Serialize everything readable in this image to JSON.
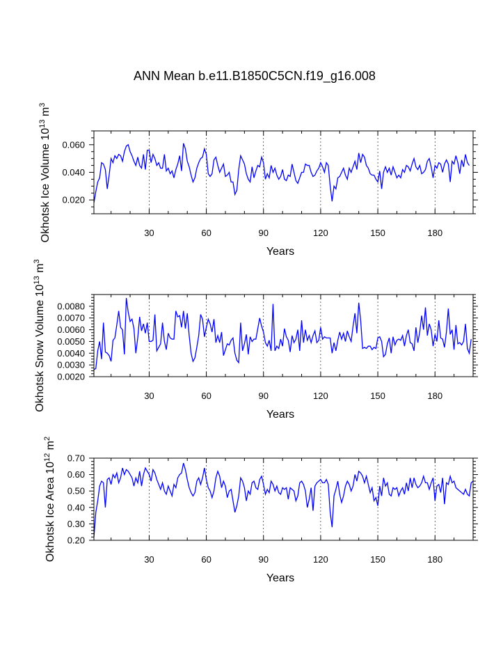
{
  "title": "ANN Mean b.e11.B1850C5CN.f19_g16.008",
  "chart_data": [
    {
      "type": "line",
      "ylabel_main": "Okhotsk Ice Volume 10",
      "ylabel_exp": "13",
      "ylabel_unit": " m",
      "ylabel_unit_exp": "3",
      "xlabel": "Years",
      "xlim": [
        1,
        200
      ],
      "ylim": [
        0.01,
        0.07
      ],
      "xticks": [
        30,
        60,
        90,
        120,
        150,
        180
      ],
      "xtick_labels": [
        "30",
        "60",
        "90",
        "120",
        "150",
        "180"
      ],
      "yticks": [
        0.02,
        0.04,
        0.06
      ],
      "ytick_labels": [
        "0.020",
        "0.040",
        "0.060"
      ],
      "grid": "vertical dashed at 30-year intervals",
      "series": [
        {
          "name": "Okhotsk Ice Volume",
          "color": "#0000ff",
          "x_start": 1,
          "values": [
            0.018,
            0.026,
            0.033,
            0.036,
            0.047,
            0.046,
            0.042,
            0.028,
            0.038,
            0.05,
            0.047,
            0.052,
            0.05,
            0.053,
            0.052,
            0.048,
            0.055,
            0.059,
            0.06,
            0.055,
            0.052,
            0.048,
            0.045,
            0.051,
            0.045,
            0.043,
            0.053,
            0.042,
            0.056,
            0.056,
            0.047,
            0.053,
            0.05,
            0.045,
            0.047,
            0.043,
            0.043,
            0.053,
            0.041,
            0.043,
            0.039,
            0.041,
            0.036,
            0.042,
            0.046,
            0.052,
            0.041,
            0.061,
            0.057,
            0.048,
            0.044,
            0.038,
            0.033,
            0.036,
            0.043,
            0.047,
            0.05,
            0.051,
            0.057,
            0.053,
            0.039,
            0.037,
            0.039,
            0.049,
            0.051,
            0.045,
            0.04,
            0.043,
            0.046,
            0.037,
            0.038,
            0.04,
            0.033,
            0.033,
            0.024,
            0.027,
            0.042,
            0.052,
            0.049,
            0.046,
            0.039,
            0.035,
            0.033,
            0.044,
            0.036,
            0.041,
            0.045,
            0.044,
            0.051,
            0.047,
            0.035,
            0.039,
            0.036,
            0.045,
            0.04,
            0.043,
            0.038,
            0.035,
            0.037,
            0.042,
            0.035,
            0.034,
            0.038,
            0.037,
            0.046,
            0.04,
            0.034,
            0.032,
            0.036,
            0.04,
            0.04,
            0.046,
            0.045,
            0.045,
            0.04,
            0.037,
            0.038,
            0.041,
            0.043,
            0.047,
            0.044,
            0.04,
            0.047,
            0.045,
            0.03,
            0.019,
            0.03,
            0.028,
            0.036,
            0.037,
            0.04,
            0.043,
            0.038,
            0.035,
            0.043,
            0.04,
            0.044,
            0.048,
            0.042,
            0.054,
            0.047,
            0.053,
            0.051,
            0.045,
            0.043,
            0.039,
            0.038,
            0.038,
            0.035,
            0.033,
            0.041,
            0.028,
            0.04,
            0.044,
            0.04,
            0.043,
            0.038,
            0.044,
            0.04,
            0.036,
            0.038,
            0.036,
            0.042,
            0.04,
            0.045,
            0.044,
            0.041,
            0.046,
            0.05,
            0.044,
            0.042,
            0.045,
            0.039,
            0.04,
            0.042,
            0.048,
            0.05,
            0.044,
            0.036,
            0.045,
            0.043,
            0.047,
            0.046,
            0.04,
            0.046,
            0.049,
            0.046,
            0.033,
            0.048,
            0.046,
            0.052,
            0.047,
            0.039,
            0.049,
            0.044,
            0.053,
            0.047,
            0.045
          ]
        }
      ]
    },
    {
      "type": "line",
      "ylabel_main": "Okhotsk Snow Volume 10",
      "ylabel_exp": "13",
      "ylabel_unit": " m",
      "ylabel_unit_exp": "3",
      "xlabel": "Years",
      "xlim": [
        1,
        200
      ],
      "ylim": [
        0.002,
        0.009
      ],
      "xticks": [
        30,
        60,
        90,
        120,
        150,
        180
      ],
      "xtick_labels": [
        "30",
        "60",
        "90",
        "120",
        "150",
        "180"
      ],
      "yticks": [
        0.002,
        0.003,
        0.004,
        0.005,
        0.006,
        0.007,
        0.008
      ],
      "ytick_labels": [
        "0.0020",
        "0.0030",
        "0.0040",
        "0.0050",
        "0.0060",
        "0.0070",
        "0.0080"
      ],
      "grid": "vertical dashed at 30-year intervals",
      "series": [
        {
          "name": "Okhotsk Snow Volume",
          "color": "#0000ff",
          "x_start": 1,
          "values": [
            0.0026,
            0.0027,
            0.0042,
            0.005,
            0.0035,
            0.0066,
            0.0041,
            0.004,
            0.0038,
            0.0033,
            0.0051,
            0.0053,
            0.0064,
            0.0076,
            0.0062,
            0.006,
            0.0039,
            0.0087,
            0.0075,
            0.0067,
            0.0069,
            0.0061,
            0.004,
            0.0053,
            0.0071,
            0.0059,
            0.0065,
            0.0057,
            0.0066,
            0.005,
            0.005,
            0.0051,
            0.0073,
            0.0042,
            0.0045,
            0.0048,
            0.0066,
            0.005,
            0.0043,
            0.0057,
            0.0053,
            0.0052,
            0.0052,
            0.0076,
            0.0071,
            0.0072,
            0.0062,
            0.0076,
            0.0061,
            0.0074,
            0.0055,
            0.004,
            0.0033,
            0.0036,
            0.0045,
            0.0055,
            0.0073,
            0.0069,
            0.0054,
            0.0062,
            0.0069,
            0.0065,
            0.0058,
            0.0069,
            0.0049,
            0.0055,
            0.0049,
            0.0058,
            0.0038,
            0.0043,
            0.0048,
            0.0047,
            0.0051,
            0.0053,
            0.004,
            0.0034,
            0.0032,
            0.0066,
            0.0042,
            0.0048,
            0.0056,
            0.0039,
            0.0054,
            0.005,
            0.0052,
            0.0052,
            0.0061,
            0.007,
            0.0063,
            0.0058,
            0.0049,
            0.0046,
            0.0051,
            0.0042,
            0.0082,
            0.0042,
            0.0046,
            0.0044,
            0.0052,
            0.0046,
            0.0061,
            0.0054,
            0.0051,
            0.0041,
            0.0055,
            0.0049,
            0.0052,
            0.006,
            0.0042,
            0.0068,
            0.0049,
            0.006,
            0.0051,
            0.0055,
            0.0049,
            0.0055,
            0.0059,
            0.0049,
            0.0051,
            0.0062,
            0.0052,
            0.0054,
            0.0053,
            0.0053,
            0.0053,
            0.004,
            0.0049,
            0.0042,
            0.0051,
            0.0058,
            0.0052,
            0.0057,
            0.005,
            0.0059,
            0.0054,
            0.005,
            0.0063,
            0.0074,
            0.0057,
            0.0083,
            0.0068,
            0.0044,
            0.0045,
            0.0044,
            0.0046,
            0.0046,
            0.0043,
            0.0045,
            0.0044,
            0.0053,
            0.0054,
            0.005,
            0.0037,
            0.0039,
            0.0048,
            0.0053,
            0.004,
            0.0054,
            0.0047,
            0.0051,
            0.0052,
            0.0051,
            0.0055,
            0.0046,
            0.0055,
            0.006,
            0.0049,
            0.0048,
            0.0042,
            0.0062,
            0.0049,
            0.0058,
            0.0072,
            0.006,
            0.0079,
            0.0055,
            0.0065,
            0.006,
            0.0046,
            0.0056,
            0.005,
            0.0068,
            0.0053,
            0.0052,
            0.0045,
            0.0058,
            0.0078,
            0.0056,
            0.006,
            0.0043,
            0.0064,
            0.0048,
            0.0049,
            0.0047,
            0.005,
            0.0065,
            0.0044,
            0.004,
            0.0052
          ]
        }
      ]
    },
    {
      "type": "line",
      "ylabel_main": "Okhotsk Ice Area 10",
      "ylabel_exp": "12",
      "ylabel_unit": " m",
      "ylabel_unit_exp": "2",
      "xlabel": "Years",
      "xlim": [
        1,
        200
      ],
      "ylim": [
        0.2,
        0.7
      ],
      "xticks": [
        30,
        60,
        90,
        120,
        150,
        180
      ],
      "xtick_labels": [
        "30",
        "60",
        "90",
        "120",
        "150",
        "180"
      ],
      "yticks": [
        0.2,
        0.3,
        0.4,
        0.5,
        0.6,
        0.7
      ],
      "ytick_labels": [
        "0.20",
        "0.30",
        "0.40",
        "0.50",
        "0.60",
        "0.70"
      ],
      "grid": "vertical dashed at 30-year intervals",
      "series": [
        {
          "name": "Okhotsk Ice Area",
          "color": "#0000ff",
          "x_start": 1,
          "values": [
            0.22,
            0.37,
            0.44,
            0.53,
            0.56,
            0.55,
            0.4,
            0.57,
            0.58,
            0.54,
            0.6,
            0.58,
            0.61,
            0.55,
            0.58,
            0.64,
            0.6,
            0.63,
            0.62,
            0.6,
            0.58,
            0.53,
            0.58,
            0.55,
            0.62,
            0.53,
            0.6,
            0.64,
            0.62,
            0.6,
            0.56,
            0.63,
            0.61,
            0.57,
            0.54,
            0.51,
            0.55,
            0.5,
            0.48,
            0.53,
            0.5,
            0.47,
            0.54,
            0.52,
            0.58,
            0.6,
            0.61,
            0.67,
            0.63,
            0.57,
            0.52,
            0.49,
            0.47,
            0.49,
            0.56,
            0.58,
            0.54,
            0.58,
            0.64,
            0.57,
            0.52,
            0.5,
            0.46,
            0.5,
            0.58,
            0.62,
            0.59,
            0.52,
            0.56,
            0.53,
            0.46,
            0.5,
            0.51,
            0.44,
            0.37,
            0.41,
            0.47,
            0.58,
            0.56,
            0.52,
            0.44,
            0.5,
            0.48,
            0.55,
            0.56,
            0.52,
            0.51,
            0.57,
            0.59,
            0.54,
            0.48,
            0.51,
            0.49,
            0.56,
            0.54,
            0.5,
            0.53,
            0.49,
            0.48,
            0.52,
            0.51,
            0.52,
            0.45,
            0.52,
            0.51,
            0.5,
            0.44,
            0.47,
            0.55,
            0.56,
            0.54,
            0.5,
            0.4,
            0.45,
            0.52,
            0.38,
            0.53,
            0.55,
            0.56,
            0.57,
            0.55,
            0.55,
            0.57,
            0.54,
            0.37,
            0.28,
            0.47,
            0.51,
            0.56,
            0.48,
            0.43,
            0.47,
            0.53,
            0.56,
            0.54,
            0.5,
            0.53,
            0.6,
            0.56,
            0.62,
            0.61,
            0.59,
            0.55,
            0.59,
            0.54,
            0.49,
            0.52,
            0.44,
            0.46,
            0.41,
            0.53,
            0.47,
            0.58,
            0.53,
            0.55,
            0.48,
            0.47,
            0.52,
            0.51,
            0.52,
            0.47,
            0.5,
            0.52,
            0.48,
            0.55,
            0.5,
            0.58,
            0.52,
            0.58,
            0.54,
            0.52,
            0.53,
            0.55,
            0.59,
            0.55,
            0.55,
            0.51,
            0.55,
            0.58,
            0.44,
            0.53,
            0.54,
            0.49,
            0.58,
            0.42,
            0.55,
            0.54,
            0.59,
            0.55,
            0.56,
            0.52,
            0.51,
            0.5,
            0.49,
            0.48,
            0.51,
            0.48,
            0.47,
            0.55,
            0.56
          ]
        }
      ]
    }
  ]
}
